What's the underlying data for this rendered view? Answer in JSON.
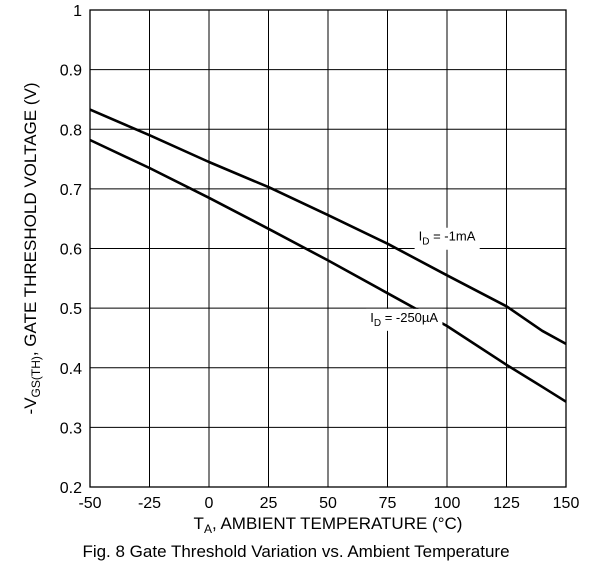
{
  "chart_data": {
    "type": "line",
    "caption": "Fig. 8 Gate Threshold Variation vs. Ambient Temperature",
    "xlabel": {
      "prefix": "T",
      "sub": "A",
      "rest": ", AMBIENT TEMPERATURE (°C)"
    },
    "ylabel": {
      "prefix": "-V",
      "sub": "GS(TH)",
      "rest": ", GATE THRESHOLD VOLTAGE (V)"
    },
    "xlim": [
      -50,
      150
    ],
    "ylim": [
      0.2,
      1.0
    ],
    "x_ticks": [
      -50,
      -25,
      0,
      25,
      50,
      75,
      100,
      125,
      150
    ],
    "y_ticks": [
      0.2,
      0.3,
      0.4,
      0.5,
      0.6,
      0.7,
      0.8,
      0.9,
      1.0
    ],
    "x_tick_labels": [
      "-50",
      "-25",
      "0",
      "25",
      "50",
      "75",
      "100",
      "125",
      "150"
    ],
    "y_tick_labels": [
      "0.2",
      "0.3",
      "0.4",
      "0.5",
      "0.6",
      "0.7",
      "0.8",
      "0.9",
      "1"
    ],
    "grid": true,
    "series": [
      {
        "name": "I_D = -1mA",
        "label_parts": {
          "prefix": "I",
          "sub": "D",
          "rest": " = -1mA"
        },
        "x": [
          -50,
          -25,
          0,
          25,
          50,
          75,
          100,
          125,
          140,
          150
        ],
        "y": [
          0.833,
          0.79,
          0.745,
          0.703,
          0.656,
          0.608,
          0.555,
          0.503,
          0.462,
          0.44
        ],
        "label_at": {
          "x": 100,
          "y": 0.613
        }
      },
      {
        "name": "I_D = -250µA",
        "label_parts": {
          "prefix": "I",
          "sub": "D",
          "rest": " = -250µA"
        },
        "x": [
          -50,
          -25,
          0,
          25,
          50,
          75,
          100,
          125,
          140,
          150
        ],
        "y": [
          0.782,
          0.735,
          0.685,
          0.633,
          0.58,
          0.525,
          0.47,
          0.405,
          0.368,
          0.343
        ],
        "label_at": {
          "x": 82,
          "y": 0.477
        }
      }
    ]
  }
}
